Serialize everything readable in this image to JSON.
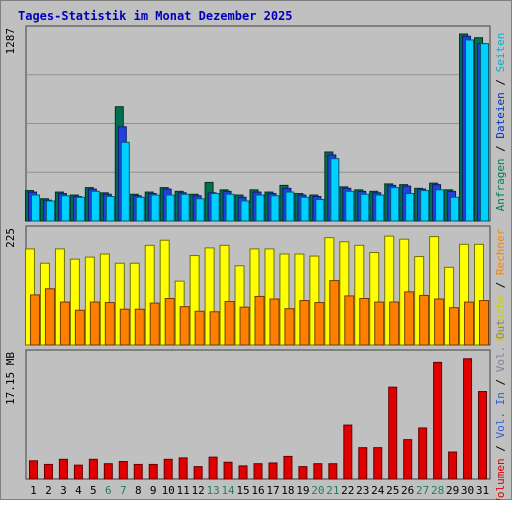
{
  "chart_data": {
    "title": "Tages-Statistik im Monat Dezember 2025",
    "days": [
      "1",
      "2",
      "3",
      "4",
      "5",
      "6",
      "7",
      "8",
      "9",
      "10",
      "11",
      "12",
      "13",
      "14",
      "15",
      "16",
      "17",
      "18",
      "19",
      "20",
      "21",
      "22",
      "23",
      "24",
      "25",
      "26",
      "27",
      "28",
      "29",
      "30",
      "31"
    ],
    "weekend_days": [
      "6",
      "7",
      "13",
      "14",
      "20",
      "21",
      "27",
      "28"
    ],
    "panels": [
      {
        "type": "bar",
        "max_label": "1287",
        "ylim": [
          0,
          1287
        ],
        "right_labels": [
          {
            "text": "Anfragen",
            "color": "#008050"
          },
          {
            "text": "Dateien",
            "color": "#0030c0"
          },
          {
            "text": "Seiten",
            "color": "#00b0d0"
          }
        ],
        "series": [
          {
            "name": "Anfragen",
            "color": "#007050",
            "values": [
              205,
              150,
              195,
              175,
              225,
              190,
              770,
              180,
              195,
              225,
              200,
              180,
              260,
              210,
              175,
              210,
              195,
              240,
              185,
              175,
              465,
              230,
              210,
              200,
              250,
              245,
              220,
              255,
              210,
              1260,
              1235
            ]
          },
          {
            "name": "Dateien",
            "color": "#2040e0",
            "values": [
              195,
              140,
              185,
              165,
              215,
              180,
              635,
              170,
              185,
              215,
              190,
              170,
              190,
              200,
              160,
              195,
              185,
              220,
              175,
              165,
              445,
              220,
              200,
              190,
              240,
              235,
              215,
              245,
              200,
              1245,
              1195
            ]
          },
          {
            "name": "Seiten",
            "color": "#00d0ff",
            "values": [
              175,
              135,
              170,
              160,
              200,
              165,
              530,
              160,
              175,
              175,
              180,
              150,
              185,
              180,
              135,
              175,
              170,
              195,
              160,
              145,
              420,
              200,
              180,
              175,
              225,
              185,
              205,
              210,
              160,
              1220,
              1195
            ]
          }
        ]
      },
      {
        "type": "bar",
        "max_label": "225",
        "ylim": [
          0,
          225
        ],
        "right_labels": [
          {
            "text": "Besuche",
            "color": "#d0d000"
          },
          {
            "text": "Rechner",
            "color": "#ff8000"
          }
        ],
        "series": [
          {
            "name": "Besuche",
            "color": "#ffff00",
            "values": [
              188,
              160,
              188,
              168,
              172,
              178,
              160,
              160,
              195,
              205,
              125,
              175,
              190,
              195,
              155,
              188,
              188,
              178,
              178,
              174,
              210,
              202,
              195,
              181,
              213,
              207,
              173,
              212,
              152,
              197,
              197
            ]
          },
          {
            "name": "Rechner",
            "color": "#ff8000",
            "values": [
              98,
              110,
              84,
              68,
              84,
              83,
              70,
              70,
              82,
              91,
              75,
              66,
              65,
              85,
              74,
              95,
              90,
              71,
              87,
              83,
              126,
              96,
              91,
              84,
              84,
              104,
              97,
              90,
              73,
              84,
              87
            ]
          }
        ]
      },
      {
        "type": "bar",
        "max_label": "17.15 MB",
        "ylim": [
          0,
          17.15
        ],
        "right_labels": [
          {
            "text": "Volumen",
            "color": "#e00000"
          },
          {
            "text": "Vol. In",
            "color": "#3060d0"
          },
          {
            "text": "Vol. Out",
            "color": "#8080a0"
          }
        ],
        "series": [
          {
            "name": "Volumen",
            "color": "#e00000",
            "values": [
              2.5,
              2.0,
              2.7,
              1.9,
              2.7,
              2.1,
              2.4,
              2.0,
              2.0,
              2.7,
              2.9,
              1.7,
              3.0,
              2.3,
              1.8,
              2.1,
              2.2,
              3.1,
              1.7,
              2.1,
              2.1,
              7.4,
              4.3,
              4.3,
              12.6,
              5.4,
              7.0,
              16.0,
              3.7,
              16.5,
              12.0
            ]
          }
        ]
      }
    ]
  }
}
